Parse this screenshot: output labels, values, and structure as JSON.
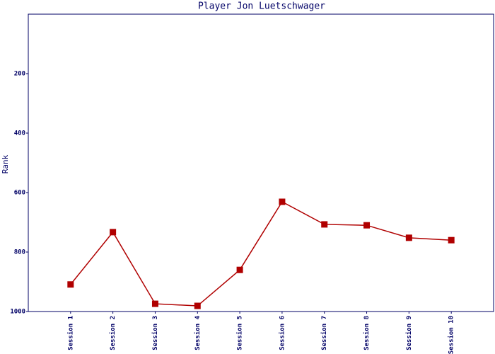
{
  "chart_data": {
    "type": "line",
    "title": "Player Jon Luetschwager",
    "y_label": "Rank",
    "categories": [
      "Session 1",
      "Session 2",
      "Session 3",
      "Session 4",
      "Session 5",
      "Session 6",
      "Session 7",
      "Session 8",
      "Session 9",
      "Session 10"
    ],
    "series": [
      {
        "name": "Rank",
        "color": "#b00000",
        "values": [
          909,
          733,
          974,
          981,
          860,
          631,
          707,
          710,
          752,
          760
        ]
      }
    ],
    "ylim": [
      0,
      1000
    ],
    "y_inverted": true,
    "yticks": [
      200,
      400,
      600,
      800,
      1000
    ],
    "grid": false
  }
}
